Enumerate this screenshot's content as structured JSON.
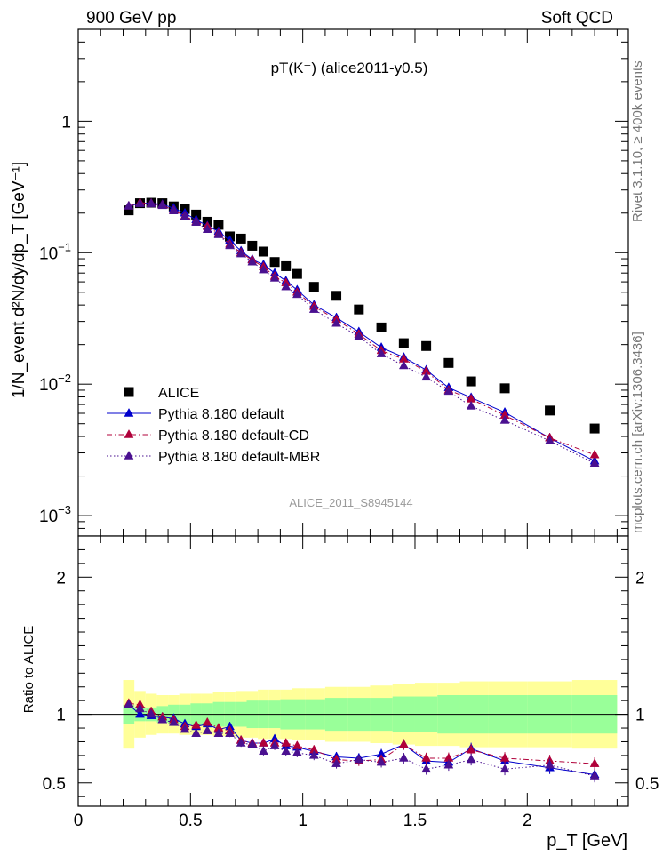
{
  "header": {
    "left": "900 GeV pp",
    "right": "Soft QCD"
  },
  "side_labels": {
    "rivet": "Rivet 3.1.10, ≥ 400k events",
    "site": "mcplots.cern.ch [arXiv:1306.3436]"
  },
  "watermark": "ALICE_2011_S8945144",
  "chart_data": [
    {
      "type": "scatter",
      "name": "main",
      "title": "pT(K⁻) (alice2011-y0.5)",
      "yscale": "log",
      "ylabel": "1/N_event d²N/dy/dp_T [GeV⁻¹]",
      "xlim": [
        0,
        2.45
      ],
      "ylim": [
        0.0007,
        5
      ],
      "yticks": [
        {
          "v": 0.001,
          "base": "10",
          "exp": "−3"
        },
        {
          "v": 0.01,
          "base": "10",
          "exp": "−2"
        },
        {
          "v": 0.1,
          "base": "10",
          "exp": "−1"
        },
        {
          "v": 1,
          "base": "1",
          "exp": ""
        }
      ],
      "x": [
        0.225,
        0.275,
        0.325,
        0.375,
        0.425,
        0.475,
        0.525,
        0.575,
        0.625,
        0.675,
        0.725,
        0.775,
        0.825,
        0.875,
        0.925,
        0.975,
        1.05,
        1.15,
        1.25,
        1.35,
        1.45,
        1.55,
        1.65,
        1.75,
        1.9,
        2.1,
        2.3
      ],
      "series": [
        {
          "name": "ALICE",
          "marker": "square",
          "color": "#000000",
          "values": [
            0.21,
            0.238,
            0.24,
            0.238,
            0.225,
            0.215,
            0.195,
            0.172,
            0.163,
            0.133,
            0.128,
            0.113,
            0.102,
            0.085,
            0.079,
            0.069,
            0.055,
            0.047,
            0.037,
            0.027,
            0.0205,
            0.0195,
            0.0145,
            0.0105,
            0.0093,
            0.0063,
            0.0046
          ]
        },
        {
          "name": "Pythia 8.180 default",
          "marker": "triangle",
          "color": "#0000cc",
          "line": "solid",
          "values": [
            0.226,
            0.238,
            0.238,
            0.233,
            0.218,
            0.2,
            0.178,
            0.16,
            0.145,
            0.124,
            0.103,
            0.089,
            0.081,
            0.07,
            0.061,
            0.052,
            0.04,
            0.032,
            0.025,
            0.019,
            0.016,
            0.0128,
            0.0094,
            0.0079,
            0.0061,
            0.0039,
            0.0026
          ]
        },
        {
          "name": "Pythia 8.180 default-CD",
          "marker": "triangle",
          "color": "#b0003a",
          "line": "dashdot",
          "values": [
            0.226,
            0.24,
            0.237,
            0.23,
            0.21,
            0.19,
            0.172,
            0.158,
            0.14,
            0.116,
            0.1,
            0.088,
            0.078,
            0.066,
            0.059,
            0.05,
            0.039,
            0.031,
            0.024,
            0.018,
            0.0155,
            0.0125,
            0.009,
            0.0077,
            0.0058,
            0.0039,
            0.0029
          ]
        },
        {
          "name": "Pythia 8.180 default-MBR",
          "marker": "triangle",
          "color": "#4a1090",
          "line": "dotted",
          "values": [
            0.226,
            0.236,
            0.235,
            0.228,
            0.208,
            0.188,
            0.17,
            0.15,
            0.137,
            0.113,
            0.098,
            0.085,
            0.074,
            0.064,
            0.055,
            0.048,
            0.037,
            0.029,
            0.023,
            0.017,
            0.0138,
            0.0113,
            0.0088,
            0.0068,
            0.0053,
            0.0037,
            0.0025
          ]
        }
      ]
    },
    {
      "type": "scatter",
      "name": "ratio",
      "ylabel": "Ratio to ALICE",
      "xlabel": "p_T [GeV]",
      "xlim": [
        0,
        2.45
      ],
      "ylim": [
        0.33,
        2.3
      ],
      "yticks": [
        0.5,
        1,
        2
      ],
      "xticks": [
        0,
        0.5,
        1,
        1.5,
        2
      ],
      "xticklabels": [
        "0",
        "0.5",
        "1",
        "1.5",
        "2"
      ],
      "bands": [
        {
          "name": "stat",
          "color": "#99ff99",
          "lo": [
            0.93,
            0.95,
            0.95,
            0.94,
            0.93,
            0.93,
            0.92,
            0.92,
            0.91,
            0.91,
            0.91,
            0.9,
            0.9,
            0.9,
            0.89,
            0.89,
            0.89,
            0.88,
            0.88,
            0.88,
            0.87,
            0.87,
            0.86,
            0.86,
            0.86,
            0.86,
            0.86
          ],
          "hi": [
            1.07,
            1.05,
            1.05,
            1.06,
            1.07,
            1.07,
            1.08,
            1.08,
            1.09,
            1.09,
            1.09,
            1.1,
            1.1,
            1.1,
            1.11,
            1.11,
            1.11,
            1.12,
            1.12,
            1.12,
            1.13,
            1.13,
            1.14,
            1.14,
            1.14,
            1.14,
            1.14
          ]
        },
        {
          "name": "total",
          "color": "#ffff99",
          "lo": [
            0.75,
            0.83,
            0.85,
            0.86,
            0.86,
            0.85,
            0.85,
            0.85,
            0.84,
            0.84,
            0.83,
            0.83,
            0.82,
            0.82,
            0.82,
            0.81,
            0.81,
            0.8,
            0.8,
            0.79,
            0.78,
            0.77,
            0.77,
            0.76,
            0.76,
            0.76,
            0.75
          ],
          "hi": [
            1.25,
            1.17,
            1.15,
            1.14,
            1.14,
            1.15,
            1.15,
            1.15,
            1.16,
            1.16,
            1.17,
            1.17,
            1.18,
            1.18,
            1.18,
            1.19,
            1.19,
            1.2,
            1.2,
            1.21,
            1.22,
            1.23,
            1.23,
            1.24,
            1.24,
            1.24,
            1.25
          ]
        }
      ],
      "series": [
        {
          "name": "Pythia 8.180 default",
          "color": "#0000cc",
          "line": "solid",
          "values": [
            1.07,
            1.0,
            0.99,
            0.98,
            0.97,
            0.93,
            0.91,
            0.93,
            0.89,
            0.91,
            0.81,
            0.79,
            0.79,
            0.82,
            0.77,
            0.76,
            0.73,
            0.69,
            0.68,
            0.71,
            0.78,
            0.66,
            0.65,
            0.75,
            0.66,
            0.61,
            0.56
          ]
        },
        {
          "name": "Pythia 8.180 default-CD",
          "color": "#b0003a",
          "line": "dashdot",
          "values": [
            1.08,
            1.07,
            1.02,
            0.98,
            0.96,
            0.91,
            0.92,
            0.94,
            0.9,
            0.88,
            0.81,
            0.79,
            0.79,
            0.79,
            0.79,
            0.77,
            0.74,
            0.67,
            0.66,
            0.67,
            0.78,
            0.68,
            0.68,
            0.74,
            0.68,
            0.66,
            0.64
          ]
        },
        {
          "name": "Pythia 8.180 default-MBR",
          "color": "#4a1090",
          "line": "dotted",
          "values": [
            1.07,
            1.04,
            1.0,
            0.96,
            0.94,
            0.89,
            0.86,
            0.88,
            0.86,
            0.86,
            0.79,
            0.78,
            0.73,
            0.77,
            0.73,
            0.72,
            0.7,
            0.64,
            0.67,
            0.65,
            0.68,
            0.6,
            0.63,
            0.67,
            0.6,
            0.63,
            0.55
          ]
        }
      ]
    }
  ],
  "legend": {
    "items": [
      {
        "label": "ALICE",
        "marker": "square",
        "color": "#000000",
        "line": "none"
      },
      {
        "label": "Pythia 8.180 default",
        "marker": "triangle",
        "color": "#0000cc",
        "line": "solid"
      },
      {
        "label": "Pythia 8.180 default-CD",
        "marker": "triangle",
        "color": "#b0003a",
        "line": "dashdot"
      },
      {
        "label": "Pythia 8.180 default-MBR",
        "marker": "triangle",
        "color": "#4a1090",
        "line": "dotted"
      }
    ]
  }
}
